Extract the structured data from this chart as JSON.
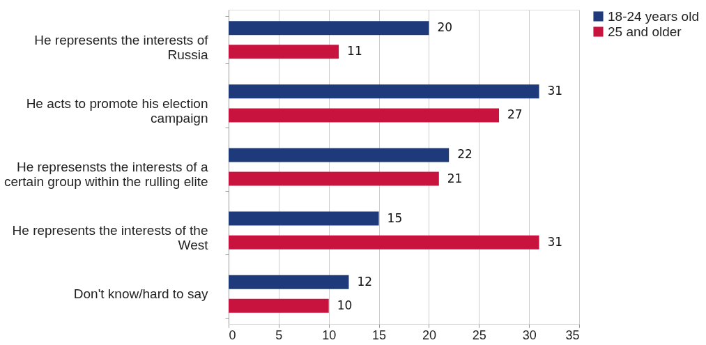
{
  "chart_data": {
    "type": "bar",
    "orientation": "horizontal",
    "categories": [
      "He represents the interests of Russia",
      "He acts to promote his election campaign",
      "He represensts the interests of a certain group within the rulling elite",
      "He represents the interests of the West",
      "Don't know/hard to say"
    ],
    "series": [
      {
        "name": "18-24 years old",
        "color": "#1f3a7a",
        "values": [
          20,
          31,
          22,
          15,
          12
        ]
      },
      {
        "name": "25 and older",
        "color": "#c8133f",
        "values": [
          11,
          27,
          21,
          31,
          10
        ]
      }
    ],
    "xlim": [
      0,
      35
    ],
    "xticks": [
      0,
      5,
      10,
      15,
      20,
      25,
      30,
      35
    ],
    "grid": "x",
    "legend": "right",
    "data_labels": true
  }
}
